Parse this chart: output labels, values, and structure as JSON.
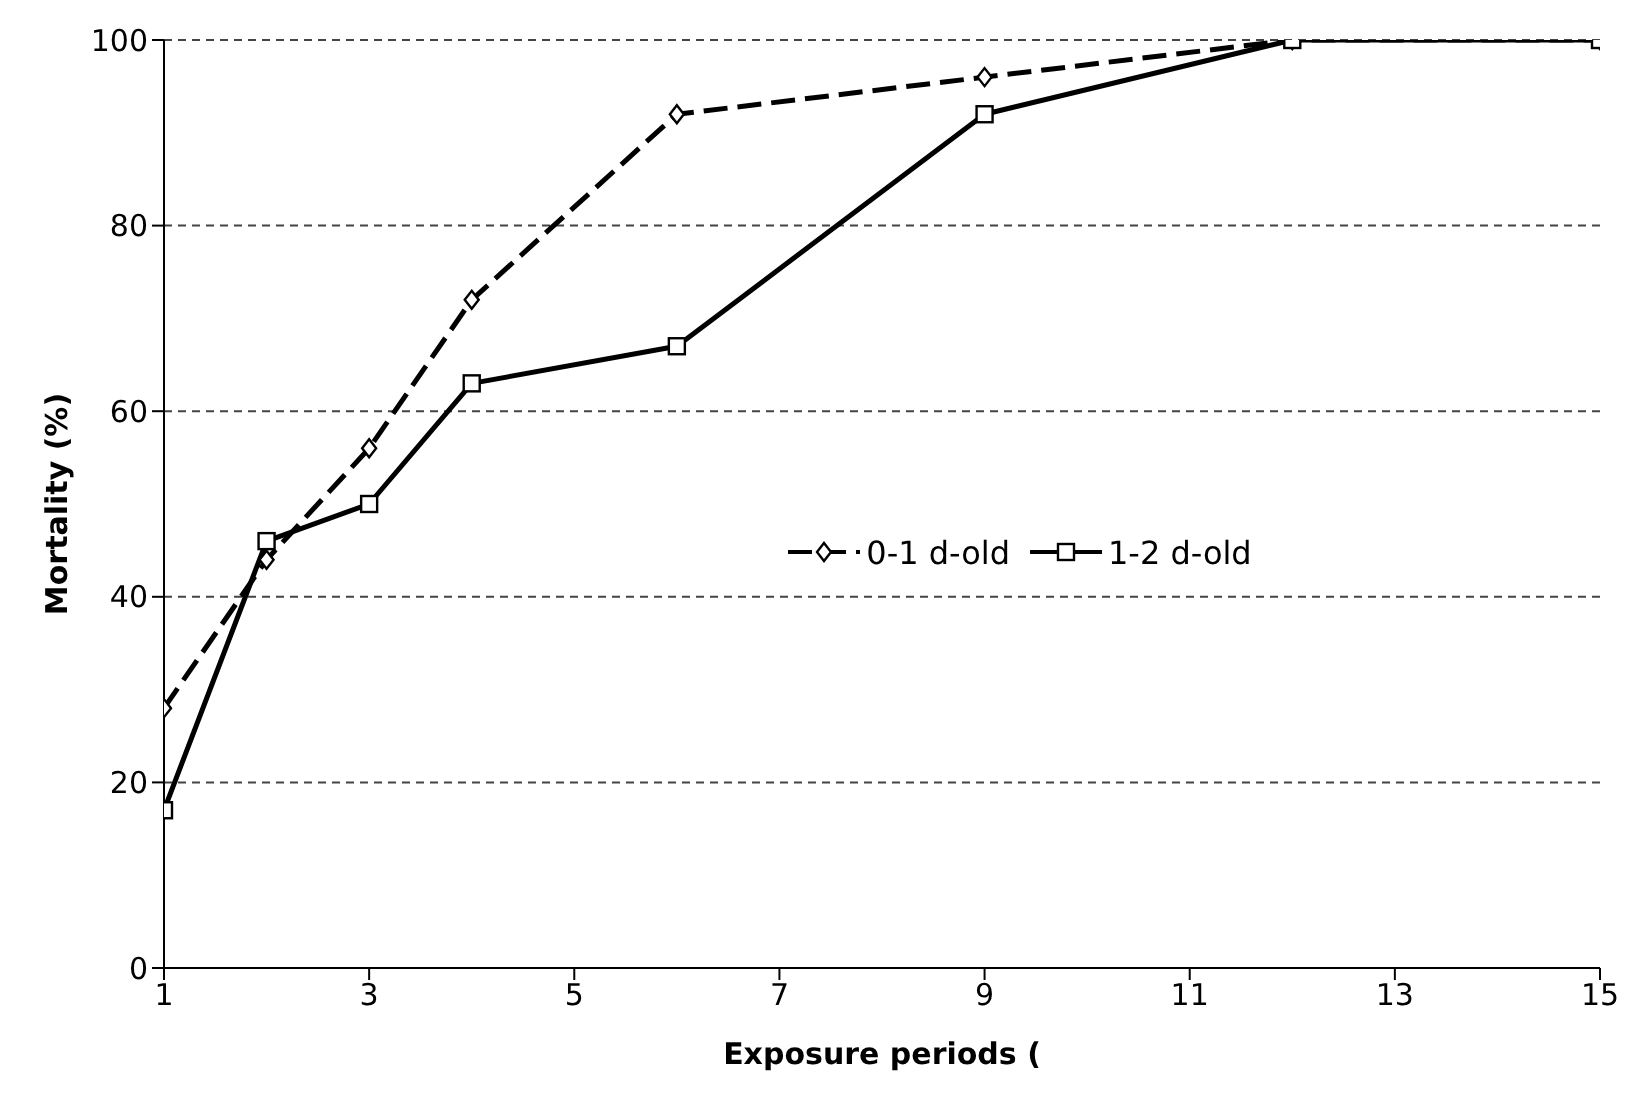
{
  "chart_data": {
    "type": "line",
    "xlabel": "Exposure periods (",
    "ylabel": "Mortality (%)",
    "x": [
      1,
      2,
      3,
      4,
      6,
      9,
      12,
      15
    ],
    "series": [
      {
        "name": "0-1 d-old",
        "color": "#000000",
        "values": [
          28,
          44,
          56,
          72,
          92,
          96,
          100,
          100
        ],
        "marker": "diamond",
        "line_style": "dashed"
      },
      {
        "name": "1-2 d-old",
        "color": "#000000",
        "values": [
          17,
          46,
          50,
          63,
          67,
          92,
          100,
          100
        ],
        "marker": "square",
        "line_style": "solid"
      }
    ],
    "xlim": [
      1,
      15
    ],
    "xticks": [
      1,
      3,
      5,
      7,
      9,
      11,
      13,
      15
    ],
    "ylim": [
      0,
      100
    ],
    "yticks": [
      0,
      20,
      40,
      60,
      80,
      100
    ],
    "grid": "y",
    "legend": "center"
  }
}
